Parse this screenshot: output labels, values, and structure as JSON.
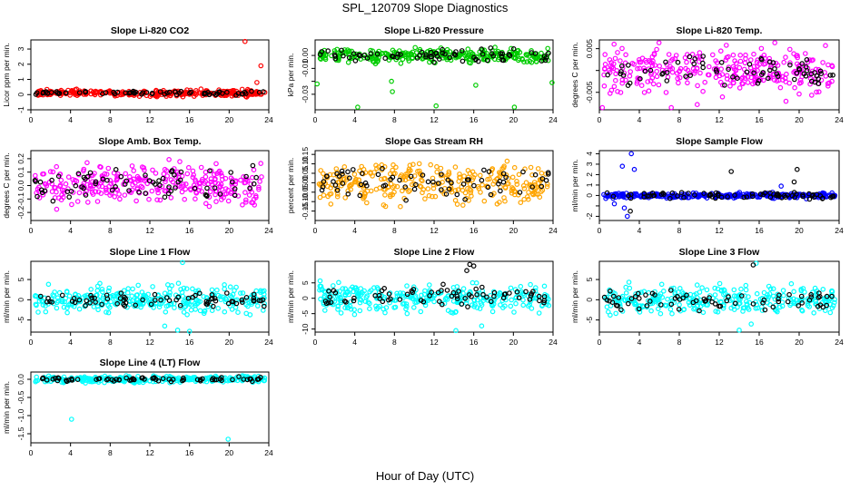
{
  "figure": {
    "title": "SPL_120709  Slope Diagnostics",
    "xlabel": "Hour of Day (UTC)"
  },
  "chart_data": [
    {
      "type": "scatter",
      "title": "Slope Li-820 CO2",
      "ylabel": "Licor ppm per min.",
      "xlim": [
        0,
        24
      ],
      "ylim": [
        -1,
        3.6
      ],
      "xticks": [
        0,
        4,
        8,
        12,
        16,
        20,
        24
      ],
      "yticks": [
        -1,
        0,
        1,
        2,
        3
      ],
      "series": [
        {
          "color": "#ff0000",
          "center": 0.1,
          "spread": 0.12,
          "outliers": [
            [
              21.6,
              3.5
            ],
            [
              23.2,
              1.9
            ],
            [
              22.8,
              0.8
            ]
          ]
        },
        {
          "color": "#000000",
          "center": 0.1,
          "spread": 0.08,
          "outliers": []
        }
      ]
    },
    {
      "type": "scatter",
      "title": "Slope Li-820 Pressure",
      "ylabel": "kPa per min.",
      "xlim": [
        0,
        24
      ],
      "ylim": [
        -0.042,
        0.012
      ],
      "xticks": [
        0,
        4,
        8,
        12,
        16,
        20,
        24
      ],
      "yticks": [
        -0.03,
        -0.02,
        -0.01,
        0.0
      ],
      "ytick_labels": [
        "-0.03",
        "",
        "-0.01",
        "0.00"
      ],
      "series": [
        {
          "color": "#00cc00",
          "center": 0.0,
          "spread": 0.003,
          "outliers": [
            [
              4.3,
              -0.04
            ],
            [
              7.7,
              -0.02
            ],
            [
              7.8,
              -0.028
            ],
            [
              12.2,
              -0.039
            ],
            [
              16.2,
              -0.023
            ],
            [
              20.1,
              -0.04
            ],
            [
              0.2,
              -0.022
            ],
            [
              23.9,
              -0.021
            ]
          ]
        },
        {
          "color": "#000000",
          "center": 0.0,
          "spread": 0.003,
          "outliers": []
        }
      ]
    },
    {
      "type": "scatter",
      "title": "Slope Li-820 Temp.",
      "ylabel": "degrees C per min.",
      "xlim": [
        0,
        24
      ],
      "ylim": [
        -0.009,
        0.007
      ],
      "xticks": [
        0,
        4,
        8,
        12,
        16,
        20,
        24
      ],
      "yticks": [
        -0.005,
        0.0,
        0.005
      ],
      "ytick_labels": [
        "-0.005",
        "",
        "0.005"
      ],
      "series": [
        {
          "color": "#ff00ff",
          "center": 0.0,
          "spread": 0.0032,
          "outliers": [
            [
              0.3,
              -0.0085
            ],
            [
              7.2,
              -0.0085
            ],
            [
              9.8,
              -0.0078
            ]
          ]
        },
        {
          "color": "#000000",
          "center": 0.0,
          "spread": 0.0022,
          "outliers": []
        }
      ]
    },
    {
      "type": "scatter",
      "title": "Slope Amb. Box Temp.",
      "ylabel": "degrees C per min.",
      "xlim": [
        0,
        24
      ],
      "ylim": [
        -0.26,
        0.26
      ],
      "xticks": [
        0,
        4,
        8,
        12,
        16,
        20,
        24
      ],
      "yticks": [
        -0.2,
        -0.1,
        0.0,
        0.1,
        0.2
      ],
      "ytick_labels": [
        "-0.2",
        "-0.1",
        "0.0",
        "0.1",
        "0.2"
      ],
      "series": [
        {
          "color": "#ff00ff",
          "center": 0.0,
          "spread": 0.09,
          "outliers": []
        },
        {
          "color": "#000000",
          "center": 0.0,
          "spread": 0.07,
          "outliers": []
        }
      ]
    },
    {
      "type": "scatter",
      "title": "Slope Gas Stream RH",
      "ylabel": "percent per min.",
      "xlim": [
        0,
        24
      ],
      "ylim": [
        -0.2,
        0.17
      ],
      "xticks": [
        0,
        4,
        8,
        12,
        16,
        20,
        24
      ],
      "yticks": [
        -0.15,
        -0.1,
        -0.05,
        0.0,
        0.05,
        0.1,
        0.15
      ],
      "ytick_labels": [
        "-0.15",
        "-0.10",
        "-0.05",
        "0.00",
        "0.05",
        "0.10",
        "0.15"
      ],
      "series": [
        {
          "color": "#ffa500",
          "center": 0.0,
          "spread": 0.065,
          "outliers": []
        },
        {
          "color": "#000000",
          "center": 0.0,
          "spread": 0.05,
          "outliers": []
        }
      ]
    },
    {
      "type": "scatter",
      "title": "Slope Sample Flow",
      "ylabel": "ml/min per min.",
      "xlim": [
        0,
        24
      ],
      "ylim": [
        -2.4,
        4.3
      ],
      "xticks": [
        0,
        4,
        8,
        12,
        16,
        20,
        24
      ],
      "yticks": [
        -2,
        -1,
        0,
        1,
        2,
        3,
        4
      ],
      "ytick_labels": [
        "-2",
        "",
        "0",
        "1",
        "2",
        "3",
        "4"
      ],
      "series": [
        {
          "color": "#0000ff",
          "center": 0.0,
          "spread": 0.15,
          "outliers": [
            [
              3.2,
              4.0
            ],
            [
              3.5,
              2.5
            ],
            [
              2.3,
              2.8
            ],
            [
              2.5,
              -1.2
            ],
            [
              2.8,
              -2.0
            ],
            [
              1.5,
              -0.8
            ],
            [
              18.2,
              0.9
            ]
          ]
        },
        {
          "color": "#000000",
          "center": 0.0,
          "spread": 0.2,
          "outliers": [
            [
              13.2,
              2.3
            ],
            [
              19.8,
              2.5
            ],
            [
              19.5,
              1.3
            ],
            [
              3.1,
              -1.5
            ]
          ]
        }
      ]
    },
    {
      "type": "scatter",
      "title": "Slope Line 1 Flow",
      "ylabel": "ml/min per min.",
      "xlim": [
        0,
        24
      ],
      "ylim": [
        -8,
        9.5
      ],
      "xticks": [
        0,
        4,
        8,
        12,
        16,
        20,
        24
      ],
      "yticks": [
        -5,
        0,
        5
      ],
      "ytick_labels": [
        "-5",
        "0",
        "5"
      ],
      "series": [
        {
          "color": "#00ffff",
          "center": 0.0,
          "spread": 2.0,
          "outliers": [
            [
              15.3,
              9.2
            ],
            [
              14.8,
              -7.5
            ],
            [
              13.5,
              -6.5
            ],
            [
              16.0,
              -7.8
            ]
          ]
        },
        {
          "color": "#000000",
          "center": 0.0,
          "spread": 1.0,
          "outliers": []
        }
      ]
    },
    {
      "type": "scatter",
      "title": "Slope Line 2 Flow",
      "ylabel": "ml/min per min.",
      "xlim": [
        0,
        24
      ],
      "ylim": [
        -11,
        12
      ],
      "xticks": [
        0,
        4,
        8,
        12,
        16,
        20,
        24
      ],
      "yticks": [
        -10,
        -5,
        0,
        5
      ],
      "ytick_labels": [
        "-10",
        "-5",
        "0",
        "5"
      ],
      "series": [
        {
          "color": "#00ffff",
          "center": 0.0,
          "spread": 3.0,
          "outliers": [
            [
              14.2,
              -10.5
            ],
            [
              16.8,
              -9.0
            ]
          ]
        },
        {
          "color": "#000000",
          "center": 0.5,
          "spread": 2.0,
          "outliers": [
            [
              15.6,
              11.0
            ],
            [
              16.0,
              10.5
            ],
            [
              15.3,
              9.0
            ]
          ]
        }
      ]
    },
    {
      "type": "scatter",
      "title": "Slope Line 3 Flow",
      "ylabel": "ml/min per min.",
      "xlim": [
        0,
        24
      ],
      "ylim": [
        -8,
        9.5
      ],
      "xticks": [
        0,
        4,
        8,
        12,
        16,
        20,
        24
      ],
      "yticks": [
        -5,
        0,
        5
      ],
      "ytick_labels": [
        "-5",
        "0",
        "5"
      ],
      "series": [
        {
          "color": "#00ffff",
          "center": 0.0,
          "spread": 2.0,
          "outliers": [
            [
              15.7,
              9.0
            ],
            [
              14.0,
              -7.5
            ],
            [
              15.2,
              -6.0
            ]
          ]
        },
        {
          "color": "#000000",
          "center": 0.0,
          "spread": 1.2,
          "outliers": [
            [
              15.4,
              8.6
            ]
          ]
        }
      ]
    },
    {
      "type": "scatter",
      "title": "Slope Line 4 (LT) Flow",
      "ylabel": "ml/min per min.",
      "xlim": [
        0,
        24
      ],
      "ylim": [
        -1.75,
        0.2
      ],
      "xticks": [
        0,
        4,
        8,
        12,
        16,
        20,
        24
      ],
      "yticks": [
        -1.5,
        -1.0,
        -0.5,
        0.0
      ],
      "ytick_labels": [
        "-1.5",
        "-1.0",
        "-0.5",
        "0.0"
      ],
      "series": [
        {
          "color": "#00ffff",
          "center": 0.0,
          "spread": 0.05,
          "outliers": [
            [
              4.1,
              -1.1
            ],
            [
              19.9,
              -1.65
            ]
          ]
        },
        {
          "color": "#000000",
          "center": 0.0,
          "spread": 0.035,
          "outliers": []
        }
      ]
    }
  ]
}
